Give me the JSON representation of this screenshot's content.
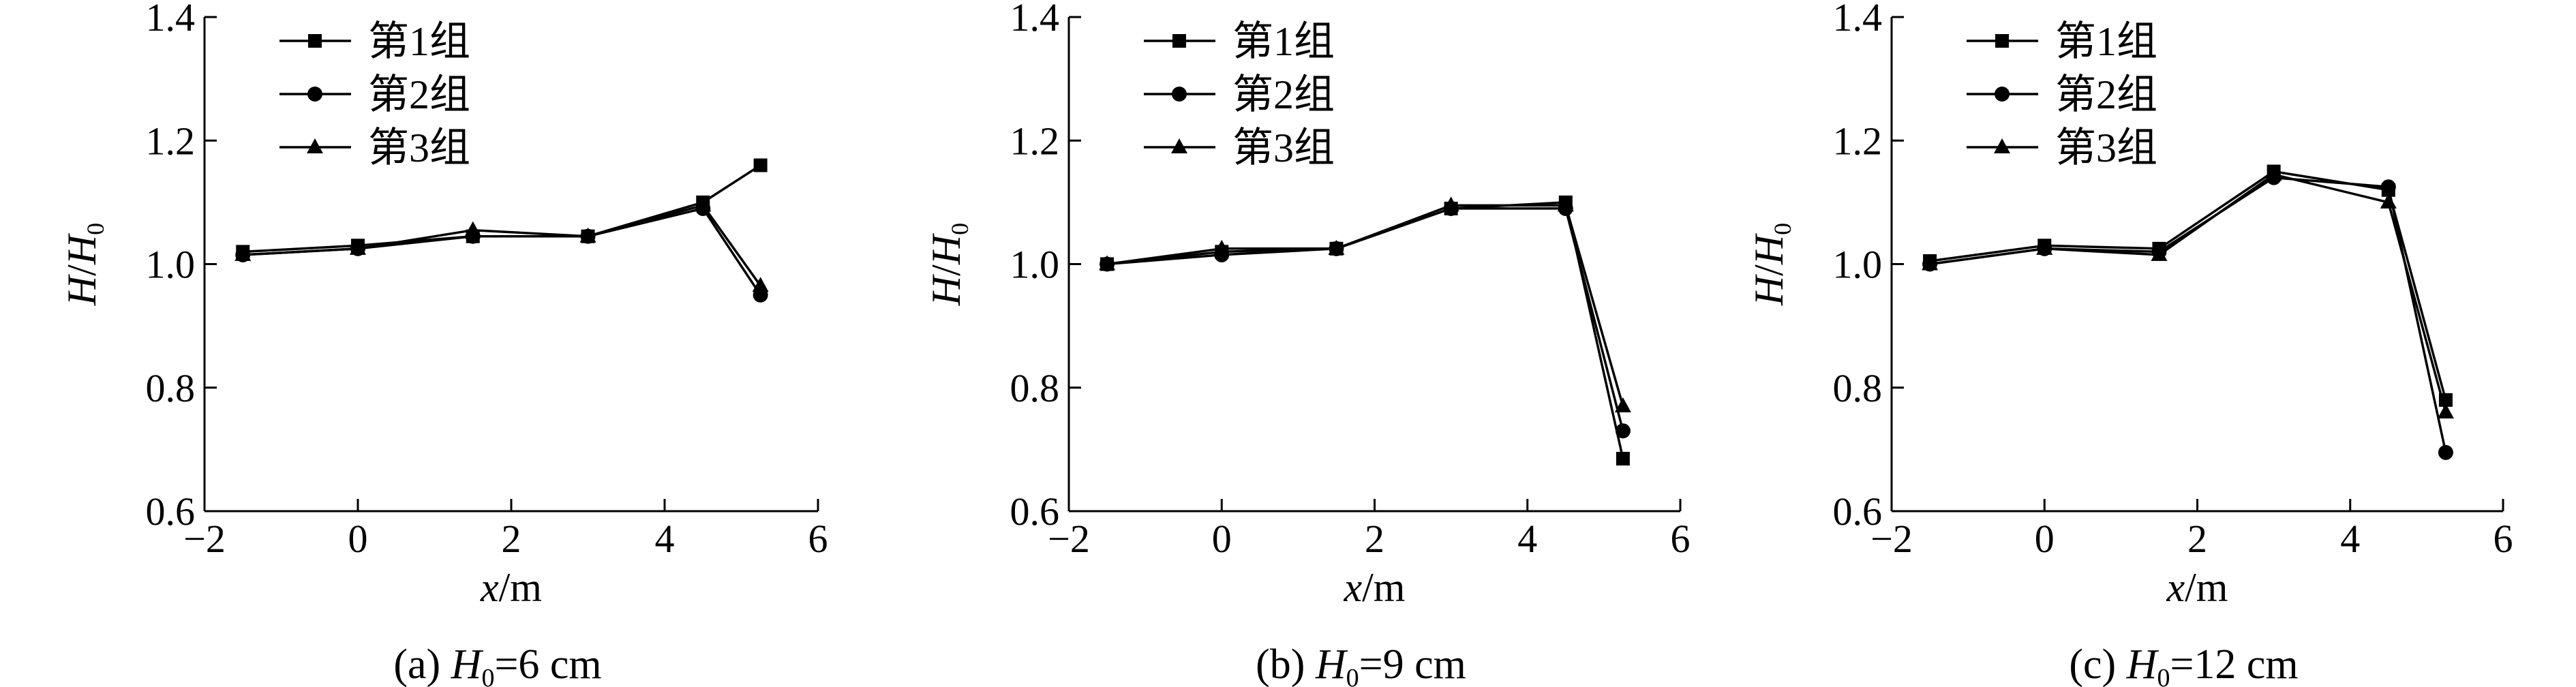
{
  "chart_data": [
    {
      "type": "line",
      "caption": {
        "prefix": "(a) ",
        "var": "H",
        "sub": "0",
        "suffix": "=6 cm"
      },
      "xlabel": {
        "var": "x",
        "unit": "/m"
      },
      "ylabel": {
        "var": "H",
        "slash": "/",
        "var2": "H",
        "sub": "0"
      },
      "xlim": [
        -2,
        6
      ],
      "ylim": [
        0.6,
        1.4
      ],
      "xticks": [
        -2,
        0,
        2,
        4,
        6
      ],
      "yticks": [
        0.6,
        0.8,
        1.0,
        1.2,
        1.4
      ],
      "xtick_labels": [
        "−2",
        "0",
        "2",
        "4",
        "6"
      ],
      "ytick_labels": [
        "0.6",
        "0.8",
        "1.0",
        "1.2",
        "1.4"
      ],
      "x": [
        -1.5,
        0,
        1.5,
        3,
        4.5,
        5.25
      ],
      "legend_position": "top-left",
      "series": [
        {
          "name": "第1组",
          "marker": "square",
          "values": [
            1.02,
            1.03,
            1.045,
            1.045,
            1.1,
            1.16
          ]
        },
        {
          "name": "第2组",
          "marker": "circle",
          "values": [
            1.015,
            1.025,
            1.045,
            1.045,
            1.09,
            0.95
          ]
        },
        {
          "name": "第3组",
          "marker": "triangle",
          "values": [
            1.015,
            1.025,
            1.055,
            1.045,
            1.095,
            0.965
          ]
        }
      ]
    },
    {
      "type": "line",
      "caption": {
        "prefix": "(b) ",
        "var": "H",
        "sub": "0",
        "suffix": "=9 cm"
      },
      "xlabel": {
        "var": "x",
        "unit": "/m"
      },
      "ylabel": {
        "var": "H",
        "slash": "/",
        "var2": "H",
        "sub": "0"
      },
      "xlim": [
        -2,
        6
      ],
      "ylim": [
        0.6,
        1.4
      ],
      "xticks": [
        -2,
        0,
        2,
        4,
        6
      ],
      "yticks": [
        0.6,
        0.8,
        1.0,
        1.2,
        1.4
      ],
      "xtick_labels": [
        "−2",
        "0",
        "2",
        "4",
        "6"
      ],
      "ytick_labels": [
        "0.6",
        "0.8",
        "1.0",
        "1.2",
        "1.4"
      ],
      "x": [
        -1.5,
        0,
        1.5,
        3,
        4.5,
        5.25
      ],
      "legend_position": "top-left",
      "series": [
        {
          "name": "第1组",
          "marker": "square",
          "values": [
            1.0,
            1.02,
            1.025,
            1.09,
            1.1,
            0.685
          ]
        },
        {
          "name": "第2组",
          "marker": "circle",
          "values": [
            1.0,
            1.015,
            1.025,
            1.09,
            1.09,
            0.73
          ]
        },
        {
          "name": "第3组",
          "marker": "triangle",
          "values": [
            1.0,
            1.025,
            1.025,
            1.095,
            1.095,
            0.77
          ]
        }
      ]
    },
    {
      "type": "line",
      "caption": {
        "prefix": "(c) ",
        "var": "H",
        "sub": "0",
        "suffix": "=12 cm"
      },
      "xlabel": {
        "var": "x",
        "unit": "/m"
      },
      "ylabel": {
        "var": "H",
        "slash": "/",
        "var2": "H",
        "sub": "0"
      },
      "xlim": [
        -2,
        6
      ],
      "ylim": [
        0.6,
        1.4
      ],
      "xticks": [
        -2,
        0,
        2,
        4,
        6
      ],
      "yticks": [
        0.6,
        0.8,
        1.0,
        1.2,
        1.4
      ],
      "xtick_labels": [
        "−2",
        "0",
        "2",
        "4",
        "6"
      ],
      "ytick_labels": [
        "0.6",
        "0.8",
        "1.0",
        "1.2",
        "1.4"
      ],
      "x": [
        -1.5,
        0,
        1.5,
        3,
        4.5,
        5.25
      ],
      "legend_position": "top-left",
      "series": [
        {
          "name": "第1组",
          "marker": "square",
          "values": [
            1.005,
            1.03,
            1.025,
            1.15,
            1.12,
            0.78
          ]
        },
        {
          "name": "第2组",
          "marker": "circle",
          "values": [
            1.0,
            1.025,
            1.02,
            1.14,
            1.125,
            0.695
          ]
        },
        {
          "name": "第3组",
          "marker": "triangle",
          "values": [
            1.0,
            1.025,
            1.015,
            1.145,
            1.1,
            0.76
          ]
        }
      ]
    }
  ]
}
